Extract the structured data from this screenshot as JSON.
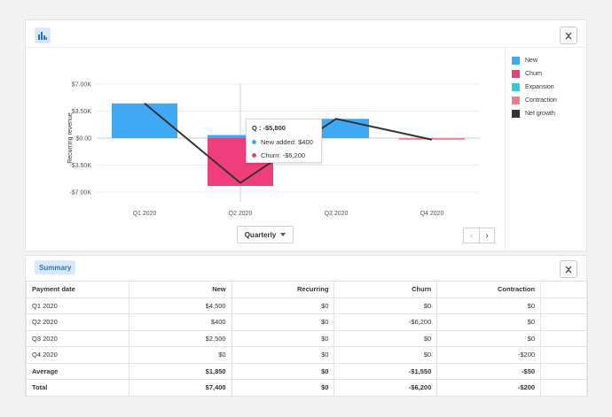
{
  "chart_panel": {
    "chart_type_icon": "bar-chart-icon",
    "collapse_icon": "collapse-icon",
    "period_select": "Quarterly",
    "prev_icon": "chevron-left-icon",
    "next_icon": "chevron-right-icon"
  },
  "tooltip": {
    "title": "Q : -$5,800",
    "rows": [
      {
        "label": "New added: $400",
        "color": "#3fa9f5"
      },
      {
        "label": "Churn: -$6,200",
        "color": "#f03e7c"
      }
    ]
  },
  "chart_data": {
    "type": "bar",
    "categories": [
      "Q1 2020",
      "Q2 2020",
      "Q3 2020",
      "Q4 2020"
    ],
    "ylabel": "Recurring revenue",
    "ylim": [
      -7000,
      7000
    ],
    "yticks": [
      7000,
      3500,
      0,
      -3500,
      -7000
    ],
    "ytick_labels": [
      "$7.00K",
      "$3.50K",
      "$0.00",
      "-$3.50K",
      "-$7.00K"
    ],
    "series": [
      {
        "name": "New",
        "color": "#3fa9f5",
        "kind": "bar",
        "values": [
          4500,
          400,
          2500,
          0
        ]
      },
      {
        "name": "Churn",
        "color": "#f03e7c",
        "kind": "bar",
        "values": [
          0,
          -6200,
          0,
          0
        ]
      },
      {
        "name": "Expansion",
        "color": "#35c9d6",
        "kind": "bar",
        "values": [
          0,
          0,
          0,
          0
        ]
      },
      {
        "name": "Contraction",
        "color": "#f27c8e",
        "kind": "bar",
        "values": [
          0,
          0,
          0,
          -200
        ]
      },
      {
        "name": "Net growth",
        "color": "#333333",
        "kind": "line",
        "values": [
          4500,
          -5800,
          2500,
          -200
        ]
      }
    ],
    "legend_position": "right",
    "grid": true
  },
  "summary": {
    "tab_label": "Summary",
    "collapse_icon": "collapse-icon",
    "columns": [
      "Payment date",
      "New",
      "Recurring",
      "Churn",
      "Contraction"
    ],
    "rows": [
      [
        "Q1 2020",
        "$4,500",
        "$0",
        "$0",
        "$0"
      ],
      [
        "Q2 2020",
        "$400",
        "$0",
        "-$6,200",
        "$0"
      ],
      [
        "Q3 2020",
        "$2,500",
        "$0",
        "$0",
        "$0"
      ],
      [
        "Q4 2020",
        "$0",
        "$0",
        "$0",
        "-$200"
      ],
      [
        "Average",
        "$1,850",
        "$0",
        "-$1,550",
        "-$50"
      ],
      [
        "Total",
        "$7,400",
        "$0",
        "-$6,200",
        "-$200"
      ]
    ]
  }
}
